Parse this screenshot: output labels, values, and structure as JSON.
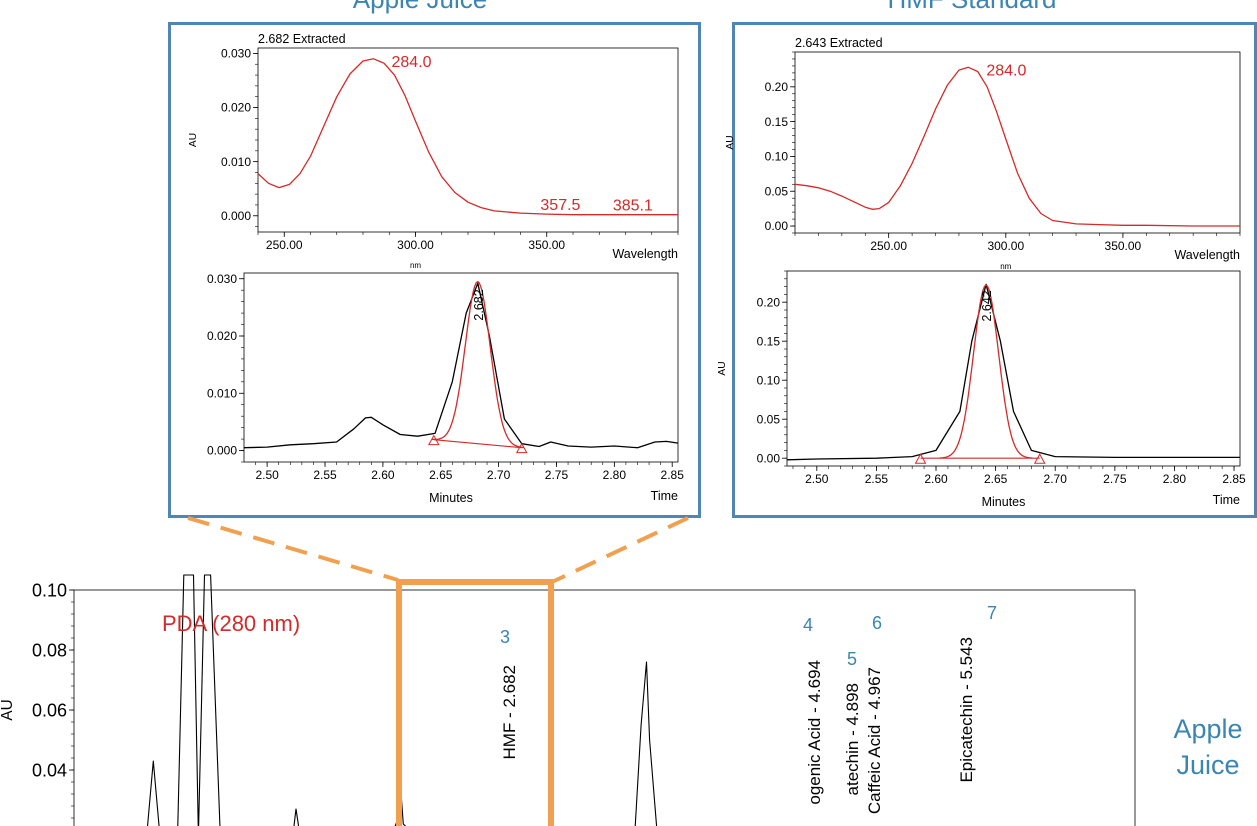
{
  "colors": {
    "frame_blue": "#4f86b5",
    "highlight_orange": "#f0a04e",
    "spectrum_red": "#d42a2a",
    "label_blue": "#3a86b0",
    "trace_black": "#000000"
  },
  "titles": {
    "left_panel": "Apple Juice",
    "right_panel": "HMF Standard",
    "side_label_line1": "Apple",
    "side_label_line2": "Juice"
  },
  "chart_data": [
    {
      "id": "aj-spectrum",
      "type": "line",
      "title": "2.682 Extracted",
      "xlabel": "Wavelength",
      "xunit": "nm",
      "ylabel": "AU",
      "xlim": [
        240,
        400
      ],
      "ylim": [
        -0.003,
        0.031
      ],
      "xticks": [
        250.0,
        300.0,
        350.0
      ],
      "xtick_labels": [
        "250.00",
        "300.00",
        "350.00"
      ],
      "yticks": [
        0.0,
        0.01,
        0.02,
        0.03
      ],
      "ytick_labels": [
        "0.000",
        "0.010",
        "0.020",
        "0.030"
      ],
      "series": [
        {
          "color": "#d42a2a",
          "x": [
            240,
            244,
            248,
            252,
            256,
            260,
            265,
            270,
            275,
            280,
            284,
            288,
            292,
            296,
            300,
            305,
            310,
            315,
            320,
            325,
            330,
            340,
            350,
            360,
            370,
            380,
            390,
            400
          ],
          "y": [
            0.0078,
            0.006,
            0.0052,
            0.0058,
            0.0078,
            0.011,
            0.0165,
            0.022,
            0.0262,
            0.0286,
            0.029,
            0.0282,
            0.026,
            0.0222,
            0.0175,
            0.0118,
            0.0072,
            0.0043,
            0.0025,
            0.0015,
            0.0009,
            0.0005,
            0.0003,
            0.0002,
            0.0002,
            0.0002,
            0.0002,
            0.0002
          ]
        }
      ],
      "annotations": [
        {
          "text": "284.0",
          "x": 284,
          "y": 0.029
        },
        {
          "text": "357.5",
          "x": 357.5,
          "y": 0.0003
        },
        {
          "text": "385.1",
          "x": 385.1,
          "y": 0.0002
        }
      ]
    },
    {
      "id": "aj-chromatogram",
      "type": "line",
      "xlabel": "Minutes",
      "xlabel_right": "Time",
      "ylabel": "",
      "xlim": [
        2.48,
        2.855
      ],
      "ylim": [
        -0.002,
        0.031
      ],
      "xticks": [
        2.5,
        2.55,
        2.6,
        2.65,
        2.7,
        2.75,
        2.8,
        2.85
      ],
      "xtick_labels": [
        "2.50",
        "2.55",
        "2.60",
        "2.65",
        "2.70",
        "2.75",
        "2.80",
        "2.85"
      ],
      "yticks": [
        0.0,
        0.01,
        0.02,
        0.03
      ],
      "ytick_labels": [
        "0.000",
        "0.010",
        "0.020",
        "0.030"
      ],
      "series": [
        {
          "color": "#000000",
          "x": [
            2.48,
            2.5,
            2.52,
            2.54,
            2.56,
            2.575,
            2.585,
            2.59,
            2.6,
            2.615,
            2.63,
            2.645,
            2.66,
            2.672,
            2.682,
            2.692,
            2.705,
            2.72,
            2.735,
            2.745,
            2.76,
            2.78,
            2.8,
            2.82,
            2.835,
            2.845,
            2.855
          ],
          "y": [
            0.0005,
            0.0006,
            0.001,
            0.0012,
            0.0015,
            0.0038,
            0.0057,
            0.0058,
            0.0045,
            0.0028,
            0.0025,
            0.003,
            0.012,
            0.024,
            0.0292,
            0.02,
            0.0055,
            0.0012,
            0.0007,
            0.0015,
            0.0008,
            0.0006,
            0.0008,
            0.0005,
            0.0015,
            0.0016,
            0.0013
          ]
        }
      ],
      "fit_peak": {
        "color": "#d42a2a",
        "center": 2.682,
        "height": 0.0283,
        "sigma": 0.0107
      },
      "baseline": {
        "x": [
          2.644,
          2.72
        ],
        "y": [
          0.0019,
          0.0005
        ]
      },
      "annotations": [
        {
          "text": "2.682",
          "x": 2.682,
          "y": 0.0292
        }
      ]
    },
    {
      "id": "hmf-spectrum",
      "type": "line",
      "title": "2.643 Extracted",
      "xlabel": "Wavelength",
      "xunit": "nm",
      "ylabel": "AU",
      "xlim": [
        210,
        400
      ],
      "ylim": [
        -0.01,
        0.25
      ],
      "xticks": [
        250.0,
        300.0,
        350.0
      ],
      "xtick_labels": [
        "250.00",
        "300.00",
        "350.00"
      ],
      "yticks": [
        0.0,
        0.05,
        0.1,
        0.15,
        0.2
      ],
      "ytick_labels": [
        "0.00",
        "0.05",
        "0.10",
        "0.15",
        "0.20"
      ],
      "series": [
        {
          "color": "#d42a2a",
          "x": [
            210,
            215,
            220,
            225,
            230,
            235,
            240,
            243,
            246,
            250,
            255,
            260,
            265,
            270,
            275,
            280,
            284,
            288,
            292,
            296,
            300,
            305,
            310,
            315,
            320,
            330,
            340,
            350,
            360,
            380,
            400
          ],
          "y": [
            0.06,
            0.058,
            0.055,
            0.05,
            0.043,
            0.035,
            0.027,
            0.024,
            0.025,
            0.034,
            0.058,
            0.09,
            0.128,
            0.168,
            0.202,
            0.224,
            0.228,
            0.222,
            0.2,
            0.165,
            0.125,
            0.076,
            0.04,
            0.018,
            0.008,
            0.003,
            0.002,
            0.001,
            0.001,
            0.0,
            0.0
          ]
        }
      ],
      "annotations": [
        {
          "text": "284.0",
          "x": 284,
          "y": 0.228
        }
      ]
    },
    {
      "id": "hmf-chromatogram",
      "type": "line",
      "xlabel": "Minutes",
      "xlabel_right": "Time",
      "ylabel": "AU",
      "xlim": [
        2.475,
        2.855
      ],
      "ylim": [
        -0.01,
        0.24
      ],
      "xticks": [
        2.5,
        2.55,
        2.6,
        2.65,
        2.7,
        2.75,
        2.8,
        2.85
      ],
      "xtick_labels": [
        "2.50",
        "2.55",
        "2.60",
        "2.65",
        "2.70",
        "2.75",
        "2.80",
        "2.85"
      ],
      "yticks": [
        0.0,
        0.05,
        0.1,
        0.15,
        0.2
      ],
      "ytick_labels": [
        "0.00",
        "0.05",
        "0.10",
        "0.15",
        "0.20"
      ],
      "series": [
        {
          "color": "#000000",
          "x": [
            2.475,
            2.5,
            2.55,
            2.58,
            2.6,
            2.62,
            2.63,
            2.642,
            2.654,
            2.665,
            2.68,
            2.7,
            2.75,
            2.8,
            2.855
          ],
          "y": [
            -0.002,
            -0.001,
            0.0,
            0.002,
            0.01,
            0.06,
            0.15,
            0.223,
            0.15,
            0.06,
            0.01,
            0.002,
            0.001,
            0.001,
            0.001
          ]
        }
      ],
      "fit_peak": {
        "color": "#d42a2a",
        "center": 2.642,
        "height": 0.222,
        "sigma": 0.0105
      },
      "baseline": {
        "x": [
          2.587,
          2.687
        ],
        "y": [
          0.0,
          0.0
        ]
      },
      "annotations": [
        {
          "text": "2.642",
          "x": 2.642,
          "y": 0.223
        }
      ]
    },
    {
      "id": "pda-chromatogram",
      "type": "line",
      "title": "PDA (280 nm)",
      "ylabel": "AU",
      "xlim": [
        0,
        8.7
      ],
      "ylim": [
        0.02,
        0.1
      ],
      "yticks": [
        0.04,
        0.06,
        0.08,
        0.1
      ],
      "ytick_labels": [
        "0.04",
        "0.06",
        "0.08",
        "0.10"
      ],
      "series": [
        {
          "color": "#000000",
          "x": [
            0.25,
            0.5,
            0.6,
            0.65,
            0.7,
            0.75,
            0.85,
            0.9,
            0.98,
            1.02,
            1.07,
            1.12,
            1.2,
            1.4,
            1.6,
            1.8,
            1.82,
            1.85,
            2.0,
            2.3,
            2.6,
            2.66,
            2.682,
            2.7,
            2.8,
            3.5,
            4.3,
            4.6,
            4.65,
            4.694,
            4.72,
            4.78,
            4.9,
            5.0,
            5.3,
            5.543,
            5.6,
            6.5,
            7.2
          ],
          "y": [
            0.018,
            0.018,
            0.02,
            0.043,
            0.02,
            0.018,
            0.02,
            0.105,
            0.105,
            0.018,
            0.105,
            0.105,
            0.018,
            0.018,
            0.019,
            0.02,
            0.027,
            0.019,
            0.018,
            0.018,
            0.018,
            0.024,
            0.032,
            0.022,
            0.018,
            0.018,
            0.018,
            0.02,
            0.055,
            0.076,
            0.05,
            0.02,
            0.019,
            0.018,
            0.018,
            0.019,
            0.018,
            0.018,
            0.018
          ]
        }
      ],
      "peaks": [
        {
          "number": "3",
          "label": "HMF - 2.682",
          "x": 2.682
        },
        {
          "number": "4",
          "label": "ogenic Acid - 4.694",
          "x": 4.694
        },
        {
          "number": "5",
          "label": "atechin - 4.898",
          "x": 4.898
        },
        {
          "number": "6",
          "label": "Caffeic Acid - 4.967",
          "x": 4.967
        },
        {
          "number": "7",
          "label": "Epicatechin - 5.543",
          "x": 5.543
        }
      ]
    }
  ]
}
